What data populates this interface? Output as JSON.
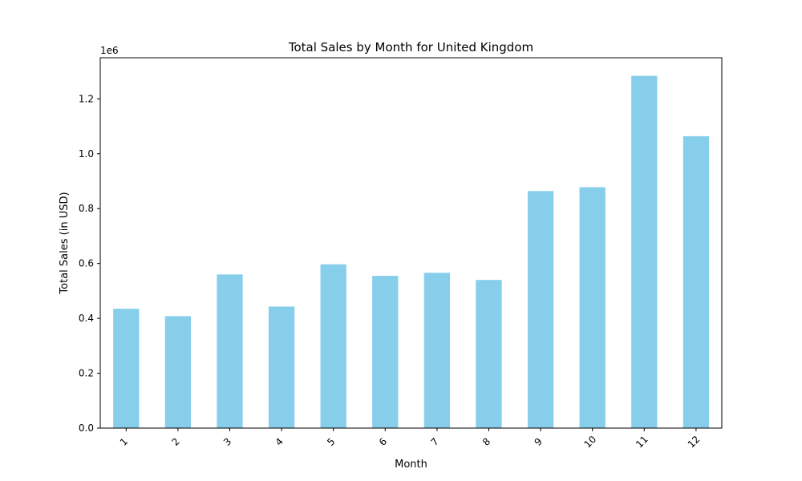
{
  "chart_data": {
    "type": "bar",
    "title": "Total Sales by Month for United Kingdom",
    "xlabel": "Month",
    "ylabel": "Total Sales (in USD)",
    "y_offset_label": "1e6",
    "categories": [
      "1",
      "2",
      "3",
      "4",
      "5",
      "6",
      "7",
      "8",
      "9",
      "10",
      "11",
      "12"
    ],
    "values": [
      435000,
      408000,
      560000,
      443000,
      597000,
      555000,
      566000,
      540000,
      864000,
      878000,
      1284000,
      1064000
    ],
    "ylim": [
      0,
      1350000
    ],
    "yticks": [
      0,
      200000,
      400000,
      600000,
      800000,
      1000000,
      1200000
    ],
    "ytick_labels": [
      "0.0",
      "0.2",
      "0.4",
      "0.6",
      "0.8",
      "1.0",
      "1.2"
    ],
    "bar_color": "#87CEEB",
    "grid": false,
    "legend": "none"
  }
}
